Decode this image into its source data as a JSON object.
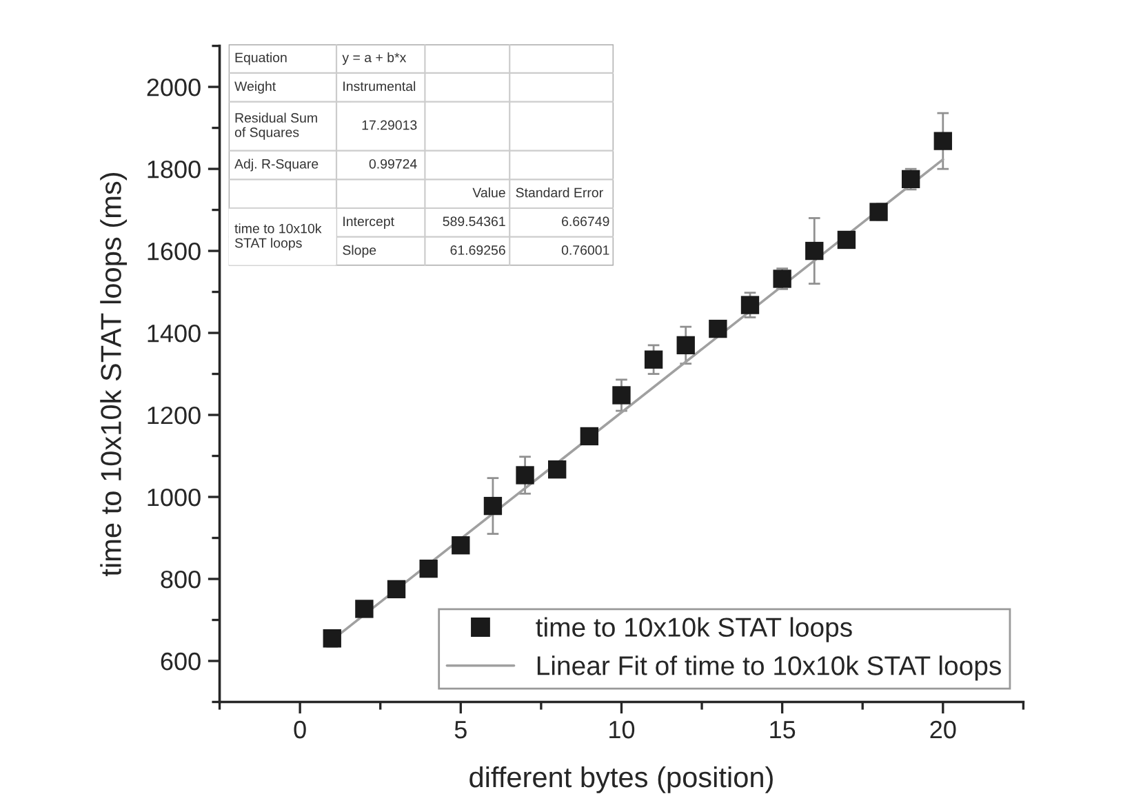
{
  "chart_data": {
    "type": "scatter",
    "xlabel": "different bytes (position)",
    "ylabel": "time to 10x10k STAT loops (ms)",
    "x": [
      1,
      2,
      3,
      4,
      5,
      6,
      7,
      8,
      9,
      10,
      11,
      12,
      13,
      14,
      15,
      16,
      17,
      18,
      19,
      20
    ],
    "series": [
      {
        "name": "time to 10x10k STAT loops",
        "color": "#1a1a1a",
        "marker": "square",
        "values": [
          655,
          727,
          775,
          825,
          882,
          978,
          1053,
          1067,
          1148,
          1248,
          1335,
          1370,
          1410,
          1468,
          1532,
          1600,
          1627,
          1695,
          1775,
          1868
        ],
        "errors": [
          20,
          8,
          8,
          8,
          8,
          68,
          45,
          8,
          8,
          38,
          35,
          45,
          15,
          30,
          25,
          80,
          8,
          15,
          25,
          68
        ]
      },
      {
        "name": "Linear Fit of time to 10x10k STAT loops",
        "type": "line",
        "color": "#a0a0a0",
        "marker": "none",
        "line_style": "solid",
        "x": [
          1,
          20
        ],
        "values": [
          651,
          1823
        ]
      }
    ],
    "xlim": [
      -2.5,
      22.5
    ],
    "xticks": [
      0,
      5,
      10,
      15,
      20
    ],
    "ylim": [
      500,
      2100
    ],
    "yticks": [
      600,
      800,
      1000,
      1200,
      1400,
      1600,
      1800,
      2000
    ],
    "grid": false,
    "legend": "bottom right",
    "annotations": [
      "Equation",
      "y = a + b*x",
      "Weight",
      "Instrumental",
      "Residual Sum\nof Squares",
      "17.29013",
      "Adj. R-Square",
      "0.99724",
      "Value",
      "Standard Error",
      "time to 10x10k\nSTAT loops",
      "Intercept",
      "589.54361",
      "6.66749",
      "Slope",
      "61.69256",
      "0.76001"
    ]
  }
}
